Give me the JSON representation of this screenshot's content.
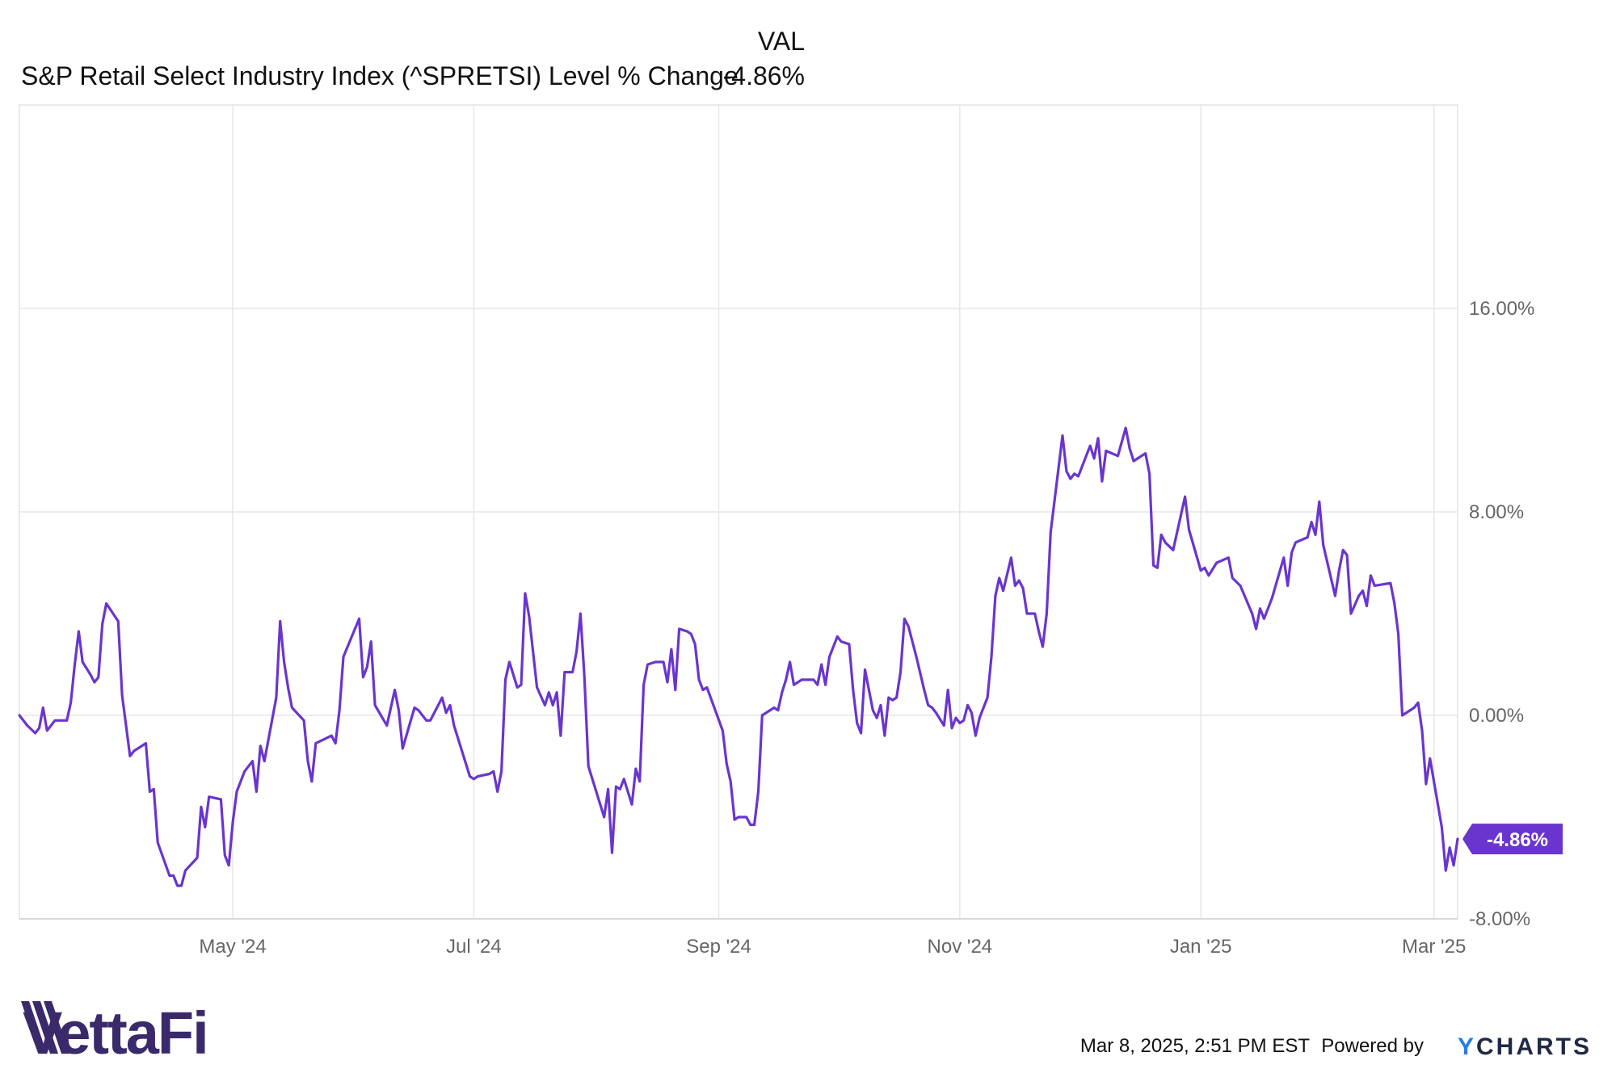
{
  "header": {
    "val_label": "VAL",
    "series_label": "S&P Retail Select Industry Index (^SPRETSI) Level % Change",
    "last_value": "-4.86%"
  },
  "colors": {
    "series": "#6a35cf",
    "grid": "#e6e6e6",
    "axis_text": "#666666",
    "brand": "#3a2a6b",
    "ycharts_y": "#2a7de1"
  },
  "footer": {
    "brand": "VettaFi",
    "timestamp": "Mar 8, 2025, 2:51 PM EST",
    "powered_by": "Powered by",
    "ycharts_y": "Y",
    "ycharts_rest": "CHARTS"
  },
  "chart_data": {
    "type": "line",
    "title": "",
    "xlabel": "",
    "ylabel": "",
    "x_start": "2024-03-08",
    "x_end": "2025-03-07",
    "ylim": [
      -8,
      24
    ],
    "y_ticks": [
      {
        "value": 16,
        "label": "16.00%"
      },
      {
        "value": 8,
        "label": "8.00%"
      },
      {
        "value": 0,
        "label": "0.00%"
      },
      {
        "value": -8,
        "label": "-8.00%"
      }
    ],
    "x_ticks": [
      {
        "date": "2024-05-01",
        "label": "May '24"
      },
      {
        "date": "2024-07-01",
        "label": "Jul '24"
      },
      {
        "date": "2024-09-01",
        "label": "Sep '24"
      },
      {
        "date": "2024-11-01",
        "label": "Nov '24"
      },
      {
        "date": "2025-01-01",
        "label": "Jan '25"
      },
      {
        "date": "2025-03-01",
        "label": "Mar '25"
      }
    ],
    "last_value_label": "-4.86%",
    "grid": true,
    "series": [
      {
        "name": "S&P Retail Select Industry Index (^SPRETSI) Level % Change",
        "points": [
          [
            "2024-03-08",
            0.0
          ],
          [
            "2024-03-10",
            -0.4
          ],
          [
            "2024-03-12",
            -0.7
          ],
          [
            "2024-03-13",
            -0.5
          ],
          [
            "2024-03-14",
            0.3
          ],
          [
            "2024-03-15",
            -0.6
          ],
          [
            "2024-03-17",
            -0.2
          ],
          [
            "2024-03-19",
            -0.2
          ],
          [
            "2024-03-20",
            -0.2
          ],
          [
            "2024-03-21",
            0.5
          ],
          [
            "2024-03-22",
            2.0
          ],
          [
            "2024-03-23",
            3.3
          ],
          [
            "2024-03-24",
            2.1
          ],
          [
            "2024-03-26",
            1.6
          ],
          [
            "2024-03-27",
            1.3
          ],
          [
            "2024-03-28",
            1.5
          ],
          [
            "2024-03-29",
            3.6
          ],
          [
            "2024-03-30",
            4.4
          ],
          [
            "2024-04-02",
            3.7
          ],
          [
            "2024-04-03",
            0.8
          ],
          [
            "2024-04-05",
            -1.6
          ],
          [
            "2024-04-06",
            -1.4
          ],
          [
            "2024-04-09",
            -1.1
          ],
          [
            "2024-04-10",
            -3.0
          ],
          [
            "2024-04-11",
            -2.9
          ],
          [
            "2024-04-12",
            -5.0
          ],
          [
            "2024-04-15",
            -6.3
          ],
          [
            "2024-04-16",
            -6.3
          ],
          [
            "2024-04-17",
            -6.7
          ],
          [
            "2024-04-18",
            -6.7
          ],
          [
            "2024-04-19",
            -6.1
          ],
          [
            "2024-04-22",
            -5.6
          ],
          [
            "2024-04-23",
            -3.6
          ],
          [
            "2024-04-24",
            -4.4
          ],
          [
            "2024-04-25",
            -3.2
          ],
          [
            "2024-04-28",
            -3.3
          ],
          [
            "2024-04-29",
            -5.5
          ],
          [
            "2024-04-30",
            -5.9
          ],
          [
            "2024-05-01",
            -4.2
          ],
          [
            "2024-05-02",
            -3.0
          ],
          [
            "2024-05-04",
            -2.2
          ],
          [
            "2024-05-06",
            -1.8
          ],
          [
            "2024-05-07",
            -3.0
          ],
          [
            "2024-05-08",
            -1.2
          ],
          [
            "2024-05-09",
            -1.8
          ],
          [
            "2024-05-12",
            0.7
          ],
          [
            "2024-05-13",
            3.7
          ],
          [
            "2024-05-14",
            2.1
          ],
          [
            "2024-05-15",
            1.1
          ],
          [
            "2024-05-16",
            0.3
          ],
          [
            "2024-05-19",
            -0.2
          ],
          [
            "2024-05-20",
            -1.8
          ],
          [
            "2024-05-21",
            -2.6
          ],
          [
            "2024-05-22",
            -1.1
          ],
          [
            "2024-05-26",
            -0.8
          ],
          [
            "2024-05-27",
            -1.1
          ],
          [
            "2024-05-28",
            0.2
          ],
          [
            "2024-05-29",
            2.3
          ],
          [
            "2024-06-02",
            3.8
          ],
          [
            "2024-06-03",
            1.5
          ],
          [
            "2024-06-04",
            1.9
          ],
          [
            "2024-06-05",
            2.9
          ],
          [
            "2024-06-06",
            0.4
          ],
          [
            "2024-06-09",
            -0.4
          ],
          [
            "2024-06-11",
            1.0
          ],
          [
            "2024-06-12",
            0.2
          ],
          [
            "2024-06-13",
            -1.3
          ],
          [
            "2024-06-16",
            0.3
          ],
          [
            "2024-06-17",
            0.2
          ],
          [
            "2024-06-19",
            -0.2
          ],
          [
            "2024-06-20",
            -0.2
          ],
          [
            "2024-06-23",
            0.7
          ],
          [
            "2024-06-24",
            0.1
          ],
          [
            "2024-06-25",
            0.4
          ],
          [
            "2024-06-26",
            -0.4
          ],
          [
            "2024-06-30",
            -2.4
          ],
          [
            "2024-07-01",
            -2.5
          ],
          [
            "2024-07-02",
            -2.4
          ],
          [
            "2024-07-05",
            -2.3
          ],
          [
            "2024-07-06",
            -2.2
          ],
          [
            "2024-07-07",
            -3.0
          ],
          [
            "2024-07-08",
            -2.2
          ],
          [
            "2024-07-09",
            1.4
          ],
          [
            "2024-07-10",
            2.1
          ],
          [
            "2024-07-12",
            1.1
          ],
          [
            "2024-07-13",
            1.2
          ],
          [
            "2024-07-14",
            4.8
          ],
          [
            "2024-07-15",
            3.9
          ],
          [
            "2024-07-17",
            1.1
          ],
          [
            "2024-07-19",
            0.4
          ],
          [
            "2024-07-20",
            0.9
          ],
          [
            "2024-07-21",
            0.4
          ],
          [
            "2024-07-22",
            0.9
          ],
          [
            "2024-07-23",
            -0.8
          ],
          [
            "2024-07-24",
            1.7
          ],
          [
            "2024-07-26",
            1.7
          ],
          [
            "2024-07-27",
            2.5
          ],
          [
            "2024-07-28",
            4.0
          ],
          [
            "2024-07-29",
            1.5
          ],
          [
            "2024-07-30",
            -2.0
          ],
          [
            "2024-08-03",
            -4.0
          ],
          [
            "2024-08-04",
            -2.9
          ],
          [
            "2024-08-05",
            -5.4
          ],
          [
            "2024-08-06",
            -2.8
          ],
          [
            "2024-08-07",
            -2.9
          ],
          [
            "2024-08-08",
            -2.5
          ],
          [
            "2024-08-10",
            -3.5
          ],
          [
            "2024-08-11",
            -2.1
          ],
          [
            "2024-08-12",
            -2.6
          ],
          [
            "2024-08-13",
            1.2
          ],
          [
            "2024-08-14",
            2.0
          ],
          [
            "2024-08-16",
            2.1
          ],
          [
            "2024-08-18",
            2.1
          ],
          [
            "2024-08-19",
            1.3
          ],
          [
            "2024-08-20",
            2.6
          ],
          [
            "2024-08-21",
            1.0
          ],
          [
            "2024-08-22",
            3.4
          ],
          [
            "2024-08-24",
            3.3
          ],
          [
            "2024-08-25",
            3.2
          ],
          [
            "2024-08-26",
            2.8
          ],
          [
            "2024-08-27",
            1.4
          ],
          [
            "2024-08-28",
            1.0
          ],
          [
            "2024-08-29",
            1.1
          ],
          [
            "2024-09-02",
            -0.6
          ],
          [
            "2024-09-03",
            -1.9
          ],
          [
            "2024-09-04",
            -2.6
          ],
          [
            "2024-09-05",
            -4.1
          ],
          [
            "2024-09-06",
            -4.0
          ],
          [
            "2024-09-08",
            -4.0
          ],
          [
            "2024-09-09",
            -4.3
          ],
          [
            "2024-09-10",
            -4.3
          ],
          [
            "2024-09-11",
            -3.0
          ],
          [
            "2024-09-12",
            0.0
          ],
          [
            "2024-09-15",
            0.3
          ],
          [
            "2024-09-16",
            0.2
          ],
          [
            "2024-09-17",
            0.9
          ],
          [
            "2024-09-18",
            1.4
          ],
          [
            "2024-09-19",
            2.1
          ],
          [
            "2024-09-20",
            1.2
          ],
          [
            "2024-09-22",
            1.4
          ],
          [
            "2024-09-24",
            1.4
          ],
          [
            "2024-09-25",
            1.4
          ],
          [
            "2024-09-26",
            1.2
          ],
          [
            "2024-09-27",
            2.0
          ],
          [
            "2024-09-28",
            1.2
          ],
          [
            "2024-09-29",
            2.3
          ],
          [
            "2024-10-01",
            3.1
          ],
          [
            "2024-10-02",
            2.9
          ],
          [
            "2024-10-04",
            2.8
          ],
          [
            "2024-10-05",
            1.0
          ],
          [
            "2024-10-06",
            -0.3
          ],
          [
            "2024-10-07",
            -0.7
          ],
          [
            "2024-10-08",
            1.8
          ],
          [
            "2024-10-10",
            0.2
          ],
          [
            "2024-10-11",
            -0.1
          ],
          [
            "2024-10-12",
            0.4
          ],
          [
            "2024-10-13",
            -0.8
          ],
          [
            "2024-10-14",
            0.7
          ],
          [
            "2024-10-15",
            0.6
          ],
          [
            "2024-10-16",
            0.7
          ],
          [
            "2024-10-17",
            1.7
          ],
          [
            "2024-10-18",
            3.8
          ],
          [
            "2024-10-19",
            3.5
          ],
          [
            "2024-10-21",
            2.3
          ],
          [
            "2024-10-23",
            1.0
          ],
          [
            "2024-10-24",
            0.4
          ],
          [
            "2024-10-25",
            0.3
          ],
          [
            "2024-10-26",
            0.1
          ],
          [
            "2024-10-28",
            -0.4
          ],
          [
            "2024-10-29",
            1.0
          ],
          [
            "2024-10-30",
            -0.5
          ],
          [
            "2024-10-31",
            -0.1
          ],
          [
            "2024-11-01",
            -0.3
          ],
          [
            "2024-11-02",
            -0.2
          ],
          [
            "2024-11-03",
            0.4
          ],
          [
            "2024-11-04",
            0.1
          ],
          [
            "2024-11-05",
            -0.8
          ],
          [
            "2024-11-06",
            -0.1
          ],
          [
            "2024-11-08",
            0.7
          ],
          [
            "2024-11-09",
            2.3
          ],
          [
            "2024-11-10",
            4.7
          ],
          [
            "2024-11-11",
            5.4
          ],
          [
            "2024-11-12",
            4.9
          ],
          [
            "2024-11-14",
            6.2
          ],
          [
            "2024-11-15",
            5.1
          ],
          [
            "2024-11-16",
            5.3
          ],
          [
            "2024-11-17",
            5.0
          ],
          [
            "2024-11-18",
            4.0
          ],
          [
            "2024-11-20",
            4.0
          ],
          [
            "2024-11-21",
            3.3
          ],
          [
            "2024-11-22",
            2.7
          ],
          [
            "2024-11-23",
            4.0
          ],
          [
            "2024-11-24",
            7.2
          ],
          [
            "2024-11-27",
            11.0
          ],
          [
            "2024-11-28",
            9.6
          ],
          [
            "2024-11-29",
            9.3
          ],
          [
            "2024-11-30",
            9.5
          ],
          [
            "2024-12-01",
            9.4
          ],
          [
            "2024-12-04",
            10.6
          ],
          [
            "2024-12-05",
            10.1
          ],
          [
            "2024-12-06",
            10.9
          ],
          [
            "2024-12-07",
            9.2
          ],
          [
            "2024-12-08",
            10.4
          ],
          [
            "2024-12-11",
            10.2
          ],
          [
            "2024-12-13",
            11.3
          ],
          [
            "2024-12-14",
            10.5
          ],
          [
            "2024-12-15",
            10.0
          ],
          [
            "2024-12-18",
            10.3
          ],
          [
            "2024-12-19",
            9.5
          ],
          [
            "2024-12-20",
            5.9
          ],
          [
            "2024-12-21",
            5.8
          ],
          [
            "2024-12-22",
            7.1
          ],
          [
            "2024-12-23",
            6.8
          ],
          [
            "2024-12-25",
            6.5
          ],
          [
            "2024-12-27",
            7.9
          ],
          [
            "2024-12-28",
            8.6
          ],
          [
            "2024-12-29",
            7.3
          ],
          [
            "2025-01-01",
            5.7
          ],
          [
            "2025-01-02",
            5.8
          ],
          [
            "2025-01-03",
            5.5
          ],
          [
            "2025-01-05",
            6.0
          ],
          [
            "2025-01-08",
            6.2
          ],
          [
            "2025-01-09",
            5.4
          ],
          [
            "2025-01-11",
            5.1
          ],
          [
            "2025-01-14",
            4.0
          ],
          [
            "2025-01-15",
            3.4
          ],
          [
            "2025-01-16",
            4.2
          ],
          [
            "2025-01-17",
            3.8
          ],
          [
            "2025-01-19",
            4.6
          ],
          [
            "2025-01-22",
            6.2
          ],
          [
            "2025-01-23",
            5.1
          ],
          [
            "2025-01-24",
            6.4
          ],
          [
            "2025-01-25",
            6.8
          ],
          [
            "2025-01-28",
            7.0
          ],
          [
            "2025-01-29",
            7.6
          ],
          [
            "2025-01-30",
            7.1
          ],
          [
            "2025-01-31",
            8.4
          ],
          [
            "2025-02-01",
            6.7
          ],
          [
            "2025-02-04",
            4.7
          ],
          [
            "2025-02-05",
            5.7
          ],
          [
            "2025-02-06",
            6.5
          ],
          [
            "2025-02-07",
            6.3
          ],
          [
            "2025-02-08",
            4.0
          ],
          [
            "2025-02-10",
            4.7
          ],
          [
            "2025-02-11",
            4.9
          ],
          [
            "2025-02-12",
            4.3
          ],
          [
            "2025-02-13",
            5.5
          ],
          [
            "2025-02-14",
            5.1
          ],
          [
            "2025-02-18",
            5.2
          ],
          [
            "2025-02-19",
            4.4
          ],
          [
            "2025-02-20",
            3.2
          ],
          [
            "2025-02-21",
            0.0
          ],
          [
            "2025-02-24",
            0.3
          ],
          [
            "2025-02-25",
            0.5
          ],
          [
            "2025-02-26",
            -0.6
          ],
          [
            "2025-02-27",
            -2.7
          ],
          [
            "2025-02-28",
            -1.7
          ],
          [
            "2025-03-03",
            -4.4
          ],
          [
            "2025-03-04",
            -6.1
          ],
          [
            "2025-03-05",
            -5.2
          ],
          [
            "2025-03-06",
            -5.9
          ],
          [
            "2025-03-07",
            -4.86
          ]
        ]
      }
    ]
  }
}
